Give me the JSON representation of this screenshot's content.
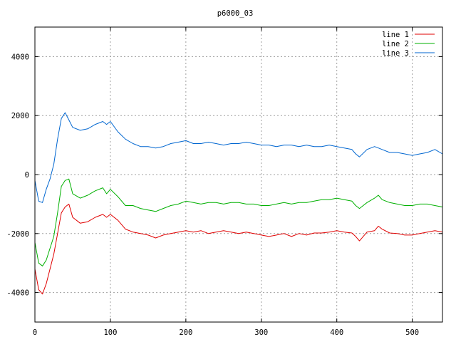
{
  "chart_data": {
    "type": "line",
    "title": "p6000_03",
    "xlabel": "",
    "ylabel": "",
    "xlim": [
      0,
      540
    ],
    "ylim": [
      -5000,
      5000
    ],
    "x_ticks": [
      0,
      100,
      200,
      300,
      400,
      500
    ],
    "y_ticks": [
      -4000,
      -2000,
      0,
      2000,
      4000
    ],
    "x_tick_labels": [
      "0",
      "100",
      "200",
      "300",
      "400",
      "500"
    ],
    "y_tick_labels": [
      "-4000",
      "-2000",
      "0",
      "2000",
      "4000"
    ],
    "grid": true,
    "legend_position": "top-right",
    "x": [
      0,
      5,
      10,
      15,
      20,
      25,
      30,
      35,
      40,
      45,
      50,
      60,
      70,
      80,
      90,
      95,
      100,
      110,
      120,
      130,
      140,
      150,
      160,
      170,
      180,
      190,
      200,
      210,
      220,
      230,
      240,
      250,
      260,
      270,
      280,
      290,
      300,
      310,
      320,
      330,
      340,
      350,
      360,
      370,
      380,
      390,
      400,
      410,
      420,
      425,
      430,
      440,
      450,
      455,
      460,
      470,
      480,
      490,
      500,
      510,
      520,
      530,
      540
    ],
    "series": [
      {
        "name": "line 1",
        "color": "#e00000",
        "values": [
          -3200,
          -3900,
          -4050,
          -3700,
          -3200,
          -2700,
          -2000,
          -1300,
          -1100,
          -1000,
          -1450,
          -1650,
          -1600,
          -1450,
          -1350,
          -1450,
          -1350,
          -1550,
          -1850,
          -1950,
          -2000,
          -2050,
          -2150,
          -2050,
          -2000,
          -1950,
          -1900,
          -1950,
          -1900,
          -2000,
          -1950,
          -1900,
          -1950,
          -2000,
          -1950,
          -2000,
          -2050,
          -2100,
          -2050,
          -2000,
          -2100,
          -2000,
          -2050,
          -1980,
          -1980,
          -1950,
          -1900,
          -1950,
          -1980,
          -2100,
          -2250,
          -1950,
          -1900,
          -1750,
          -1850,
          -1980,
          -2000,
          -2050,
          -2050,
          -2000,
          -1950,
          -1900,
          -1950
        ]
      },
      {
        "name": "line 2",
        "color": "#00b000",
        "values": [
          -2300,
          -3000,
          -3100,
          -2900,
          -2500,
          -2100,
          -1300,
          -400,
          -200,
          -150,
          -650,
          -800,
          -700,
          -550,
          -450,
          -650,
          -500,
          -750,
          -1050,
          -1050,
          -1150,
          -1200,
          -1250,
          -1150,
          -1050,
          -1000,
          -900,
          -950,
          -1000,
          -950,
          -950,
          -1000,
          -950,
          -950,
          -1000,
          -1000,
          -1050,
          -1050,
          -1000,
          -950,
          -1000,
          -950,
          -950,
          -900,
          -850,
          -850,
          -800,
          -850,
          -900,
          -1050,
          -1150,
          -950,
          -800,
          -700,
          -850,
          -950,
          -1000,
          -1050,
          -1050,
          -1000,
          -1000,
          -1050,
          -1100
        ]
      },
      {
        "name": "line 3",
        "color": "#0066d0",
        "values": [
          -200,
          -900,
          -950,
          -500,
          -150,
          350,
          1200,
          1900,
          2100,
          1850,
          1600,
          1500,
          1550,
          1700,
          1800,
          1700,
          1800,
          1450,
          1200,
          1050,
          950,
          950,
          900,
          950,
          1050,
          1100,
          1150,
          1050,
          1050,
          1100,
          1050,
          1000,
          1050,
          1050,
          1100,
          1050,
          1000,
          1000,
          950,
          1000,
          1000,
          950,
          1000,
          950,
          950,
          1000,
          950,
          900,
          850,
          700,
          600,
          850,
          950,
          900,
          850,
          750,
          750,
          700,
          650,
          700,
          750,
          850,
          700
        ]
      }
    ]
  }
}
